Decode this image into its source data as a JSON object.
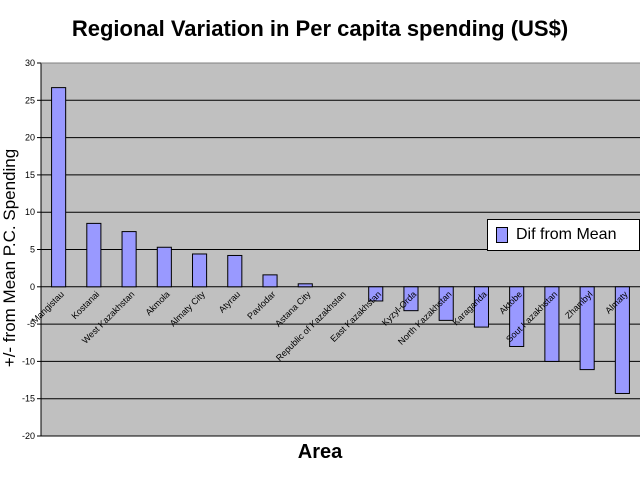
{
  "chart_data": {
    "type": "bar",
    "title": "Regional Variation in Per capita spending (US$)",
    "xlabel": "Area",
    "ylabel": "+/- from Mean P.C. Spending",
    "ylim": [
      -20,
      30
    ],
    "yticks": [
      30,
      25,
      20,
      15,
      10,
      5,
      0,
      -5,
      -10,
      -15,
      -20
    ],
    "grid": true,
    "legend_position": "right",
    "categories": [
      "Mangistau",
      "Kostanai",
      "West Kazakhstan",
      "Akmola",
      "Almaty City",
      "Atyrau",
      "Pavlodar",
      "Astana City",
      "Republic of Kazakhstan",
      "East Kazakhstan",
      "Kyzyl-Orda",
      "North Kazakhstan",
      "Karaganda",
      "Aktobe",
      "Sout Kazakhstan",
      "Zhambyl",
      "Almaty"
    ],
    "series": [
      {
        "name": "Dif from Mean",
        "color": "#9999ff",
        "values": [
          26.7,
          8.5,
          7.4,
          5.3,
          4.4,
          4.2,
          1.6,
          0.4,
          0.0,
          -1.9,
          -3.2,
          -4.5,
          -5.4,
          -8.0,
          -10.0,
          -11.1,
          -14.3
        ]
      }
    ]
  }
}
